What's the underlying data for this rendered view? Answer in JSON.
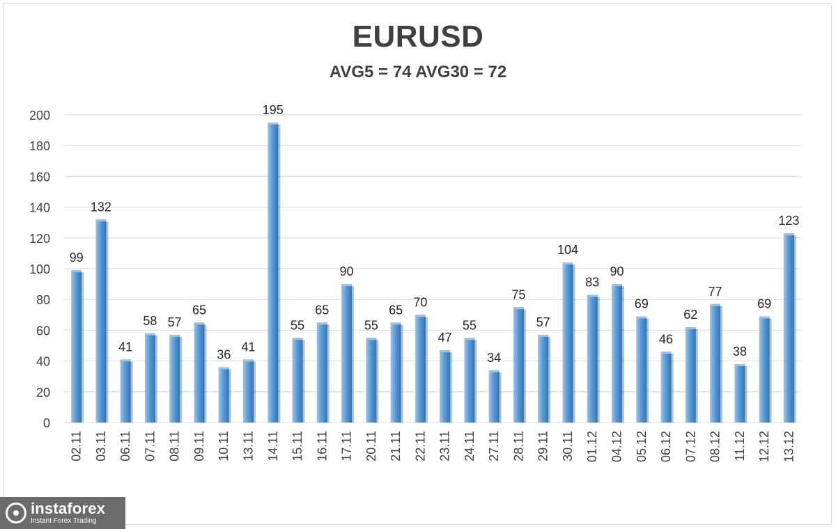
{
  "chart_data": {
    "type": "bar",
    "title": "EURUSD",
    "subtitle": "AVG5 = 74 AVG30 = 72",
    "categories": [
      "02.11",
      "03.11",
      "06.11",
      "07.11",
      "08.11",
      "09.11",
      "10.11",
      "13.11",
      "14.11",
      "15.11",
      "16.11",
      "17.11",
      "20.11",
      "21.11",
      "22.11",
      "23.11",
      "24.11",
      "27.11",
      "28.11",
      "29.11",
      "30.11",
      "01.12",
      "04.12",
      "05.12",
      "06.12",
      "07.12",
      "08.12",
      "11.12",
      "12.12",
      "13.12"
    ],
    "values": [
      99,
      132,
      41,
      58,
      57,
      65,
      36,
      41,
      195,
      55,
      65,
      90,
      55,
      65,
      70,
      47,
      55,
      34,
      75,
      57,
      104,
      83,
      90,
      69,
      46,
      62,
      77,
      38,
      69,
      123
    ],
    "ylim": [
      0,
      200
    ],
    "yticks": [
      0,
      20,
      40,
      60,
      80,
      100,
      120,
      140,
      160,
      180,
      200
    ],
    "grid": true,
    "data_labels": true,
    "bar_color": "#5b9bd5",
    "bar_highlight": "#9cc3e6",
    "bar_shadow": "#2e75b6"
  },
  "logo": {
    "name": "instaforex",
    "tagline": "Instant Forex Trading"
  }
}
